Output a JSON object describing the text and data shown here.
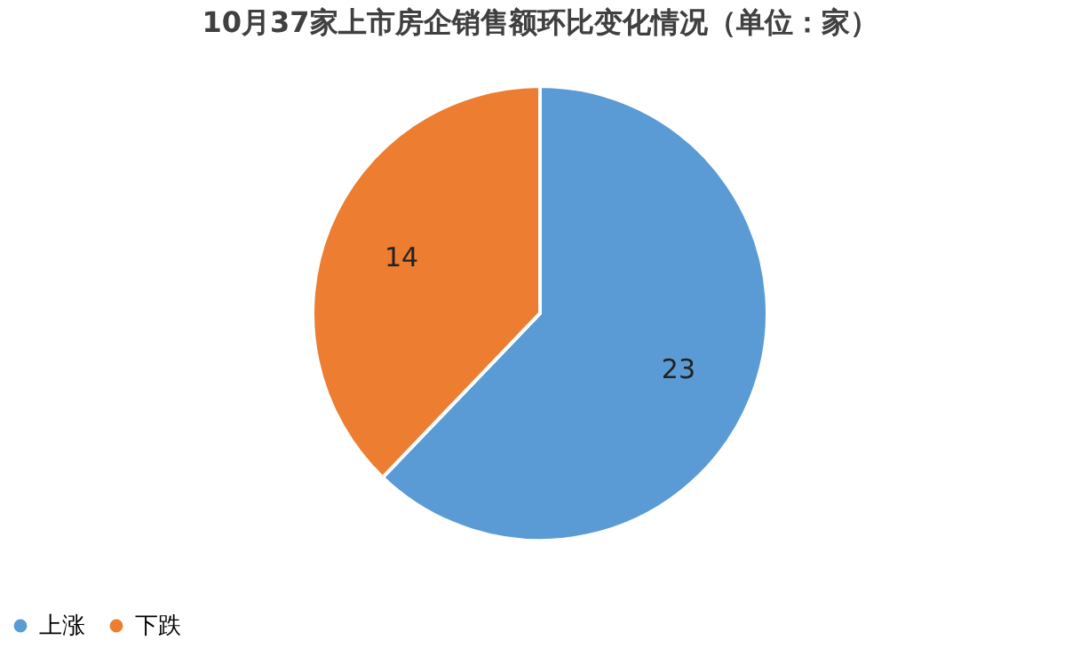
{
  "chart_data": {
    "type": "pie",
    "title": "10月37家上市房企销售额环比变化情况（单位：家）",
    "categories": [
      "上涨",
      "下跌"
    ],
    "values": [
      23,
      14
    ],
    "colors": [
      "#5b9bd5",
      "#ed7d31"
    ],
    "data_labels": true,
    "legend": "bottom"
  }
}
